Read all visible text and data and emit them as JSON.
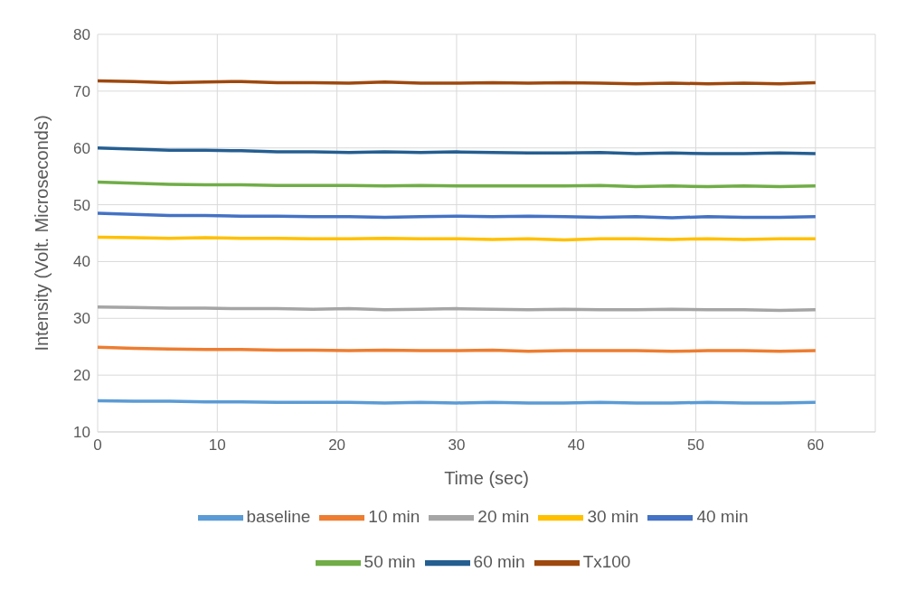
{
  "chart_data": {
    "type": "line",
    "xlabel": "Time (sec)",
    "ylabel": "Intensity (Volt. Microseconds)",
    "x": [
      0,
      3,
      6,
      9,
      12,
      15,
      18,
      21,
      24,
      27,
      30,
      33,
      36,
      39,
      42,
      45,
      48,
      51,
      54,
      57,
      60
    ],
    "xlim": [
      0,
      65
    ],
    "xticks": [
      0,
      10,
      20,
      30,
      40,
      50,
      60
    ],
    "ylim": [
      10,
      80
    ],
    "yticks": [
      10,
      20,
      30,
      40,
      50,
      60,
      70,
      80
    ],
    "grid": true,
    "legend": "bottom",
    "marker": "none",
    "line_style": "solid",
    "series": [
      {
        "name": "baseline",
        "color": "#5b9bd5",
        "values": [
          15.5,
          15.4,
          15.4,
          15.3,
          15.3,
          15.2,
          15.2,
          15.2,
          15.1,
          15.2,
          15.1,
          15.2,
          15.1,
          15.1,
          15.2,
          15.1,
          15.1,
          15.2,
          15.1,
          15.1,
          15.2
        ]
      },
      {
        "name": "10 min",
        "color": "#ed7d31",
        "values": [
          24.9,
          24.7,
          24.6,
          24.5,
          24.5,
          24.4,
          24.4,
          24.3,
          24.4,
          24.3,
          24.3,
          24.4,
          24.2,
          24.3,
          24.3,
          24.3,
          24.2,
          24.3,
          24.3,
          24.2,
          24.3
        ]
      },
      {
        "name": "20 min",
        "color": "#a5a5a5",
        "values": [
          32.0,
          31.9,
          31.8,
          31.8,
          31.7,
          31.7,
          31.6,
          31.7,
          31.5,
          31.6,
          31.7,
          31.6,
          31.5,
          31.6,
          31.5,
          31.5,
          31.6,
          31.5,
          31.5,
          31.4,
          31.5
        ]
      },
      {
        "name": "30 min",
        "color": "#ffc000",
        "values": [
          44.3,
          44.2,
          44.1,
          44.2,
          44.1,
          44.1,
          44.0,
          44.0,
          44.1,
          44.0,
          44.0,
          43.9,
          44.0,
          43.8,
          44.0,
          44.0,
          43.9,
          44.0,
          43.9,
          44.0,
          44.0
        ]
      },
      {
        "name": "40 min",
        "color": "#4472c4",
        "values": [
          48.5,
          48.3,
          48.1,
          48.1,
          48.0,
          48.0,
          47.9,
          47.9,
          47.8,
          47.9,
          48.0,
          47.9,
          48.0,
          47.9,
          47.8,
          47.9,
          47.7,
          47.9,
          47.8,
          47.8,
          47.9
        ]
      },
      {
        "name": "50 min",
        "color": "#70ad47",
        "values": [
          54.0,
          53.8,
          53.6,
          53.5,
          53.5,
          53.4,
          53.4,
          53.4,
          53.3,
          53.4,
          53.3,
          53.3,
          53.3,
          53.3,
          53.4,
          53.2,
          53.3,
          53.2,
          53.3,
          53.2,
          53.3
        ]
      },
      {
        "name": "60 min",
        "color": "#255e91",
        "values": [
          60.0,
          59.8,
          59.6,
          59.6,
          59.5,
          59.3,
          59.3,
          59.2,
          59.3,
          59.2,
          59.3,
          59.2,
          59.1,
          59.1,
          59.2,
          59.0,
          59.1,
          59.0,
          59.0,
          59.1,
          59.0
        ]
      },
      {
        "name": "Tx100",
        "color": "#9e480e",
        "values": [
          71.8,
          71.7,
          71.5,
          71.6,
          71.7,
          71.5,
          71.5,
          71.4,
          71.6,
          71.4,
          71.4,
          71.5,
          71.4,
          71.5,
          71.4,
          71.3,
          71.4,
          71.3,
          71.4,
          71.3,
          71.5
        ]
      }
    ]
  }
}
